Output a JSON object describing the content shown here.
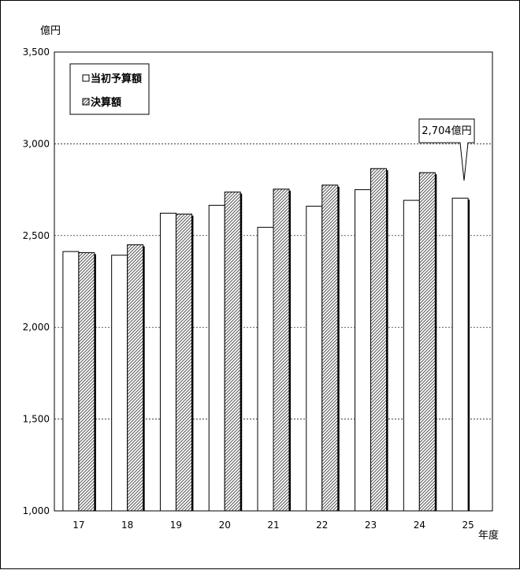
{
  "chart_data": {
    "type": "bar",
    "ylabel": "億円",
    "xlabel": "年度",
    "ylim": [
      1000,
      3500
    ],
    "yticks": [
      1000,
      1500,
      2000,
      2500,
      3000,
      3500
    ],
    "ytick_labels": [
      "1,000",
      "1,500",
      "2,000",
      "2,500",
      "3,000",
      "3,500"
    ],
    "grid": true,
    "legend_position": "top-left",
    "categories": [
      "17",
      "18",
      "19",
      "20",
      "21",
      "22",
      "23",
      "24",
      "25"
    ],
    "series": [
      {
        "name": "当初予算額",
        "values": [
          2413,
          2393,
          2622,
          2665,
          2545,
          2660,
          2750,
          2692,
          2704
        ],
        "pattern": "white"
      },
      {
        "name": "決算額",
        "values": [
          2407,
          2450,
          2617,
          2737,
          2753,
          2775,
          2865,
          2843,
          null
        ],
        "pattern": "hatched"
      }
    ],
    "annotation": {
      "text": "2,704億円",
      "category": "25",
      "series": "当初予算額"
    }
  }
}
